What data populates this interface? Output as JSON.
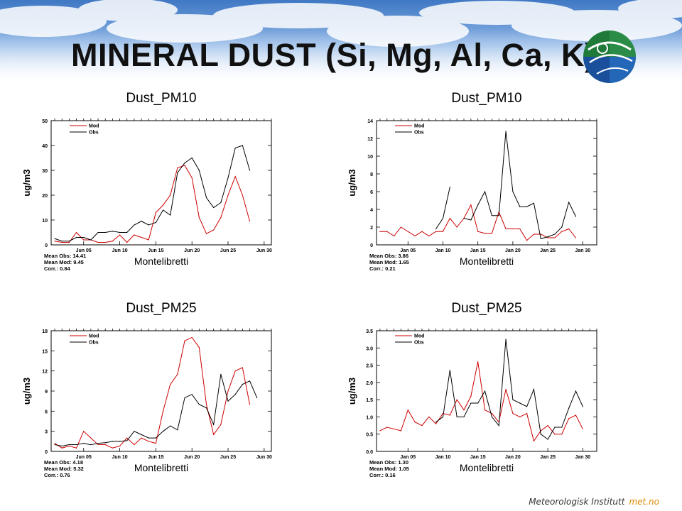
{
  "slide": {
    "title": "MINERAL DUST (Si, Mg, Al, Ca, K)",
    "footer_org": "Meteorologisk Institutt",
    "footer_brand": "met.no",
    "logo_icon": "met-no-globe-logo"
  },
  "colors": {
    "mod": "#cc0000",
    "obs": "#000000",
    "title_text": "#111111",
    "brand": "#e08a00"
  },
  "chart_data": [
    {
      "type": "line",
      "title": "Dust_PM10",
      "xlabel": "Montelibretti",
      "ylabel": "ug/m3",
      "ylim": [
        0,
        50
      ],
      "yticks": [
        "0",
        "10",
        "20",
        "30",
        "40",
        "50"
      ],
      "xticks": [
        {
          "day": 5,
          "label": "Jun 05"
        },
        {
          "day": 10,
          "label": "Jun 10"
        },
        {
          "day": 15,
          "label": "Jun 15"
        },
        {
          "day": 20,
          "label": "Jun 20"
        },
        {
          "day": 25,
          "label": "Jun 25"
        },
        {
          "day": 30,
          "label": "Jun 30"
        }
      ],
      "xlim": [
        0.5,
        31
      ],
      "legend": {
        "position": "top-left",
        "entries": [
          "Mod",
          "Obs"
        ]
      },
      "stats": [
        "Mean Obs: 14.41",
        "Mean Mod: 9.45",
        "Corr.: 0.84"
      ],
      "series": [
        {
          "name": "Mod",
          "x": [
            1,
            2,
            3,
            4,
            5,
            6,
            7,
            8,
            9,
            10,
            11,
            12,
            13,
            14,
            15,
            16,
            17,
            18,
            19,
            20,
            21,
            22,
            23,
            24,
            25,
            26,
            27,
            28,
            29,
            30
          ],
          "values": [
            1.5,
            1,
            1,
            5,
            2,
            2,
            1,
            1,
            1.5,
            4,
            1,
            4,
            3,
            2,
            13,
            16,
            20,
            31,
            32,
            27,
            11,
            4.5,
            6,
            11,
            20,
            27.5,
            20,
            9.5,
            null,
            null
          ]
        },
        {
          "name": "Obs",
          "x": [
            1,
            2,
            3,
            4,
            5,
            6,
            7,
            8,
            9,
            10,
            11,
            12,
            13,
            14,
            15,
            16,
            17,
            18,
            19,
            20,
            21,
            22,
            23,
            24,
            25,
            26,
            27,
            28,
            29,
            30
          ],
          "values": [
            2.5,
            1.5,
            1.5,
            3,
            3,
            2,
            5,
            5,
            5.5,
            5,
            5,
            8,
            9.5,
            8,
            9,
            14,
            12,
            29,
            33,
            35,
            30,
            19,
            15,
            17,
            27,
            39,
            40,
            30,
            null,
            null
          ]
        }
      ]
    },
    {
      "type": "line",
      "title": "Dust_PM10",
      "xlabel": "Montelibretti",
      "ylabel": "ug/m3",
      "ylim": [
        0,
        14
      ],
      "yticks": [
        "0",
        "2",
        "4",
        "6",
        "8",
        "10",
        "12",
        "14"
      ],
      "xticks": [
        {
          "day": 5,
          "label": "Jan 05"
        },
        {
          "day": 10,
          "label": "Jan 10"
        },
        {
          "day": 15,
          "label": "Jan 15"
        },
        {
          "day": 20,
          "label": "Jan 20"
        },
        {
          "day": 25,
          "label": "Jan 25"
        },
        {
          "day": 30,
          "label": "Jan 30"
        }
      ],
      "xlim": [
        0.5,
        32
      ],
      "legend": {
        "position": "top-left",
        "entries": [
          "Mod",
          "Obs"
        ]
      },
      "stats": [
        "Mean Obs: 3.86",
        "Mean Mod: 1.65",
        "Corr.: 0.21"
      ],
      "series": [
        {
          "name": "Mod",
          "x": [
            1,
            2,
            3,
            4,
            5,
            6,
            7,
            8,
            9,
            10,
            11,
            12,
            13,
            14,
            15,
            16,
            17,
            18,
            19,
            20,
            21,
            22,
            23,
            24,
            25,
            26,
            27,
            28,
            29,
            30,
            31
          ],
          "values": [
            1.5,
            1.5,
            1,
            2,
            1.5,
            1,
            1.5,
            1,
            1.5,
            1.5,
            3,
            2,
            3,
            4.5,
            1.5,
            1.3,
            1.3,
            3.7,
            1.8,
            1.8,
            1.8,
            0.5,
            1.2,
            1.2,
            0.8,
            0.8,
            1.5,
            1.8,
            0.8,
            null,
            null
          ]
        },
        {
          "name": "Obs",
          "x": [
            1,
            2,
            3,
            4,
            5,
            6,
            7,
            8,
            9,
            10,
            11,
            12,
            13,
            14,
            15,
            16,
            17,
            18,
            19,
            20,
            21,
            22,
            23,
            24,
            25,
            26,
            27,
            28,
            29,
            30,
            31
          ],
          "values": [
            null,
            null,
            null,
            null,
            null,
            null,
            null,
            null,
            1.8,
            3,
            6.5,
            null,
            3,
            2.8,
            4.5,
            6,
            3.3,
            3.3,
            12.8,
            6,
            4.3,
            4.3,
            4.7,
            0.7,
            0.9,
            1.2,
            2,
            4.8,
            3.2,
            null,
            null
          ]
        }
      ]
    },
    {
      "type": "line",
      "title": "Dust_PM25",
      "xlabel": "Montelibretti",
      "ylabel": "ug/m3",
      "ylim": [
        0,
        18
      ],
      "yticks": [
        "0",
        "3",
        "6",
        "9",
        "12",
        "15",
        "18"
      ],
      "xticks": [
        {
          "day": 5,
          "label": "Jun 05"
        },
        {
          "day": 10,
          "label": "Jun 10"
        },
        {
          "day": 15,
          "label": "Jun 15"
        },
        {
          "day": 20,
          "label": "Jun 20"
        },
        {
          "day": 25,
          "label": "Jun 25"
        },
        {
          "day": 30,
          "label": "Jun 30"
        }
      ],
      "xlim": [
        0.5,
        31
      ],
      "legend": {
        "position": "top-left",
        "entries": [
          "Mod",
          "Obs"
        ]
      },
      "stats": [
        "Mean Obs: 4.18",
        "Mean Mod: 5.32",
        "Corr.: 0.76"
      ],
      "series": [
        {
          "name": "Mod",
          "x": [
            1,
            2,
            3,
            4,
            5,
            6,
            7,
            8,
            9,
            10,
            11,
            12,
            13,
            14,
            15,
            16,
            17,
            18,
            19,
            20,
            21,
            22,
            23,
            24,
            25,
            26,
            27,
            28,
            29,
            30
          ],
          "values": [
            1.2,
            0.5,
            0.8,
            0.5,
            3,
            2,
            1,
            1,
            0.5,
            0.8,
            2,
            1,
            2,
            1.5,
            1.2,
            6,
            10,
            11.5,
            16.5,
            17,
            15.5,
            7,
            2.5,
            4,
            9,
            12,
            12.5,
            7,
            null,
            null
          ]
        },
        {
          "name": "Obs",
          "x": [
            1,
            2,
            3,
            4,
            5,
            6,
            7,
            8,
            9,
            10,
            11,
            12,
            13,
            14,
            15,
            16,
            17,
            18,
            19,
            20,
            21,
            22,
            23,
            24,
            25,
            26,
            27,
            28,
            29,
            30
          ],
          "values": [
            1,
            0.8,
            1,
            1,
            1.2,
            1,
            1.2,
            1.3,
            1.5,
            1.5,
            1.6,
            3,
            2.5,
            2,
            2,
            3,
            3.8,
            3.2,
            8,
            8.5,
            7,
            6.5,
            4,
            11.5,
            7.5,
            8.5,
            10,
            10.5,
            8,
            null
          ]
        }
      ]
    },
    {
      "type": "line",
      "title": "Dust_PM25",
      "xlabel": "Montelibretti",
      "ylabel": "ug/m3",
      "ylim": [
        0,
        3.5
      ],
      "yticks": [
        "0.0",
        "0.5",
        "1.0",
        "1.5",
        "2.0",
        "2.5",
        "3.0",
        "3.5"
      ],
      "xticks": [
        {
          "day": 5,
          "label": "Jan 05"
        },
        {
          "day": 10,
          "label": "Jan 10"
        },
        {
          "day": 15,
          "label": "Jan 15"
        },
        {
          "day": 20,
          "label": "Jan 20"
        },
        {
          "day": 25,
          "label": "Jan 25"
        },
        {
          "day": 30,
          "label": "Jan 30"
        }
      ],
      "xlim": [
        0.5,
        32
      ],
      "legend": {
        "position": "top-left",
        "entries": [
          "Mod",
          "Obs"
        ]
      },
      "stats": [
        "Mean Obs: 1.30",
        "Mean Mod: 1.05",
        "Corr.: 0.16"
      ],
      "series": [
        {
          "name": "Mod",
          "x": [
            1,
            2,
            3,
            4,
            5,
            6,
            7,
            8,
            9,
            10,
            11,
            12,
            13,
            14,
            15,
            16,
            17,
            18,
            19,
            20,
            21,
            22,
            23,
            24,
            25,
            26,
            27,
            28,
            29,
            30,
            31
          ],
          "values": [
            0.6,
            0.7,
            0.65,
            0.6,
            1.2,
            0.85,
            0.75,
            1.0,
            0.8,
            1.1,
            1.05,
            1.5,
            1.2,
            1.6,
            2.6,
            1.2,
            1.1,
            0.85,
            1.8,
            1.1,
            1.0,
            1.1,
            0.3,
            0.6,
            0.75,
            0.5,
            0.5,
            0.95,
            1.05,
            0.65,
            null
          ]
        },
        {
          "name": "Obs",
          "x": [
            1,
            2,
            3,
            4,
            5,
            6,
            7,
            8,
            9,
            10,
            11,
            12,
            13,
            14,
            15,
            16,
            17,
            18,
            19,
            20,
            21,
            22,
            23,
            24,
            25,
            26,
            27,
            28,
            29,
            30,
            31
          ],
          "values": [
            null,
            null,
            null,
            null,
            null,
            null,
            null,
            null,
            0.85,
            1.0,
            2.35,
            1.0,
            1.0,
            1.4,
            1.4,
            1.75,
            1.0,
            0.75,
            3.25,
            1.5,
            1.4,
            1.3,
            1.8,
            0.5,
            0.35,
            0.7,
            0.7,
            1.25,
            1.75,
            1.3,
            null
          ]
        }
      ]
    }
  ]
}
